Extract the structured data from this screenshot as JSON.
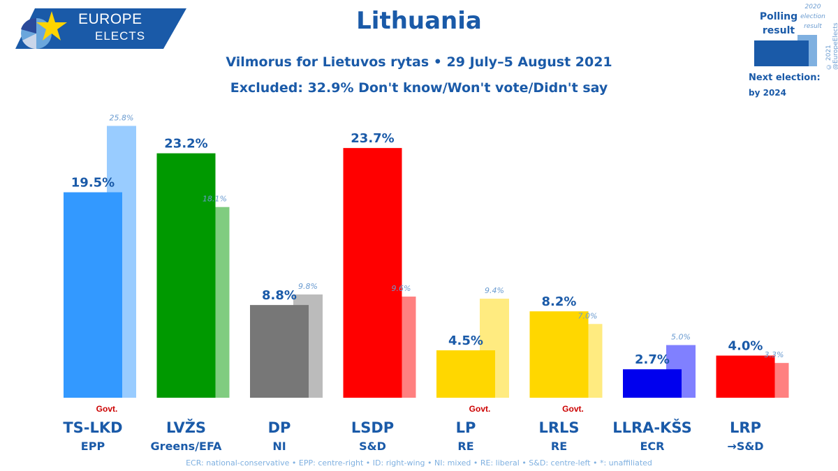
{
  "logo": {
    "line1": "EUROPE",
    "line2": "ELECTS"
  },
  "header": {
    "title": "Lithuania",
    "subtitle": "Vilmorus for Lietuvos rytas • 29 July–5 August 2021",
    "excluded": "Excluded: 32.9% Don't know/Won't vote/Didn't say"
  },
  "legend": {
    "poll_label": "Polling result",
    "prev_label": "2020 election result",
    "next_election_label": "Next election:",
    "next_election_value": "by 2024",
    "credit": "© 2021 @EuropeElects"
  },
  "footnote": "ECR: national-conservative • EPP: centre-right • ID: right-wing • NI: mixed • RE: liberal • S&D: centre-left • *: unaffiliated",
  "chart_data": {
    "type": "bar",
    "title": "Lithuania",
    "categories": [
      "TS-LKD",
      "LVŽS",
      "DP",
      "LSDP",
      "LP",
      "LRLS",
      "LLRA-KŠS",
      "LRP"
    ],
    "groups": [
      "EPP",
      "Greens/EFA",
      "NI",
      "S&D",
      "RE",
      "RE",
      "ECR",
      "→S&D"
    ],
    "govt": [
      true,
      false,
      false,
      false,
      true,
      true,
      false,
      false
    ],
    "govt_label": "Govt.",
    "series": [
      {
        "name": "Polling result",
        "values": [
          19.5,
          23.2,
          8.8,
          23.7,
          4.5,
          8.2,
          2.7,
          4.0
        ]
      },
      {
        "name": "2020 election result",
        "values": [
          25.8,
          18.1,
          9.8,
          9.6,
          9.4,
          7.0,
          5.0,
          3.3
        ]
      }
    ],
    "colors": [
      "#3399ff",
      "#009900",
      "#777777",
      "#ff0000",
      "#ffd700",
      "#ffd700",
      "#0000ee",
      "#ff0000"
    ],
    "prev_colors": [
      "#99ccff",
      "#80cc80",
      "#bbbbbb",
      "#ff8080",
      "#ffeb80",
      "#ffeb80",
      "#8080ff",
      "#ff8080"
    ],
    "ylim": [
      0,
      27
    ],
    "xlabel": "",
    "ylabel": ""
  }
}
